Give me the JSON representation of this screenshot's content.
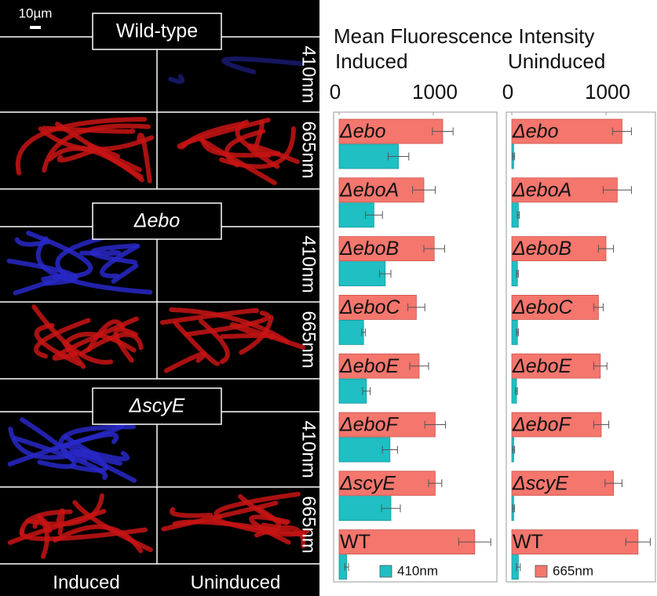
{
  "figure": {
    "scale_bar": "10µm",
    "columns": [
      "Induced",
      "Uninduced"
    ],
    "strains": [
      {
        "name": "Wild-type",
        "rows": [
          "410nm",
          "665nm"
        ]
      },
      {
        "name": "Δebo",
        "rows": [
          "410nm",
          "665nm"
        ]
      },
      {
        "name": "ΔscyE",
        "rows": [
          "410nm",
          "665nm"
        ]
      }
    ]
  },
  "title": "Mean Fluorescence Intensity",
  "chart_data": [
    {
      "type": "barh",
      "title": "Induced",
      "categories": [
        "Δebo",
        "ΔeboA",
        "ΔeboB",
        "ΔeboC",
        "ΔeboE",
        "ΔeboF",
        "ΔscyE",
        "WT"
      ],
      "series": [
        {
          "name": "665nm",
          "color": "#f4766d",
          "values": [
            1100,
            900,
            1010,
            820,
            850,
            1020,
            1020,
            1440
          ],
          "errors": [
            110,
            120,
            110,
            90,
            100,
            110,
            70,
            170
          ]
        },
        {
          "name": "410nm",
          "color": "#1fbfc4",
          "values": [
            630,
            370,
            490,
            260,
            290,
            540,
            550,
            80
          ],
          "errors": [
            110,
            90,
            60,
            20,
            40,
            80,
            100,
            20
          ]
        }
      ],
      "xlim": [
        0,
        1650
      ],
      "xticks": [
        0,
        1000
      ]
    },
    {
      "type": "barh",
      "title": "Uninduced",
      "categories": [
        "Δebo",
        "ΔeboA",
        "ΔeboB",
        "ΔeboC",
        "ΔeboE",
        "ΔeboF",
        "ΔscyE",
        "WT"
      ],
      "series": [
        {
          "name": "665nm",
          "color": "#f4766d",
          "values": [
            1170,
            1120,
            1000,
            920,
            940,
            950,
            1080,
            1340
          ],
          "errors": [
            100,
            150,
            80,
            50,
            70,
            80,
            90,
            130
          ]
        },
        {
          "name": "410nm",
          "color": "#1fbfc4",
          "values": [
            20,
            70,
            60,
            60,
            50,
            20,
            20,
            70
          ],
          "errors": [
            10,
            10,
            10,
            10,
            10,
            10,
            10,
            20
          ]
        }
      ],
      "xlim": [
        0,
        1500
      ],
      "xticks": [
        0,
        1000
      ]
    }
  ]
}
